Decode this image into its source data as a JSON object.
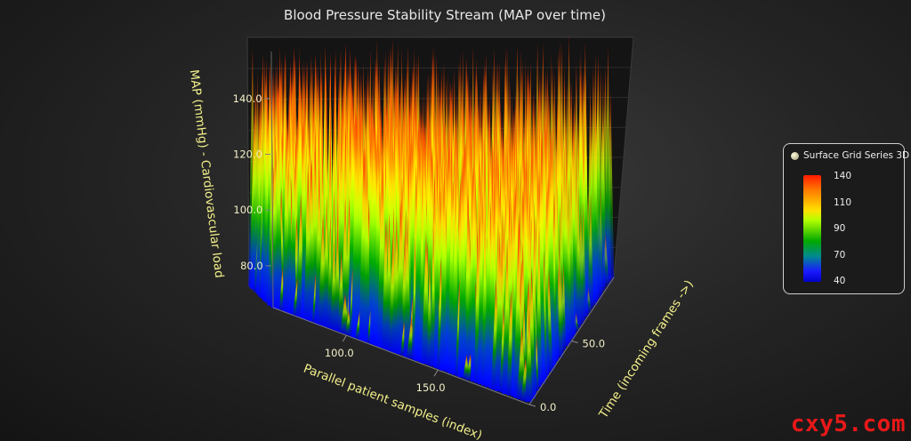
{
  "chart_data": {
    "type": "surface3d",
    "title": "Blood Pressure Stability Stream (MAP over time)",
    "zlabel": "MAP (mmHg) - Cardiovascular load",
    "xlabel": "Parallel patient samples (index)",
    "ylabel": "Time (incoming frames ->)",
    "z_ticks": [
      80.0,
      100.0,
      120.0,
      140.0
    ],
    "z_tick_labels": [
      "80.0",
      "100.0",
      "120.0",
      "140.0"
    ],
    "x_ticks": [
      100.0,
      150.0
    ],
    "x_tick_labels": [
      "100.0",
      "150.0"
    ],
    "y_ticks": [
      0.0,
      50.0
    ],
    "y_tick_labels": [
      "0.0",
      "50.0"
    ],
    "zlim": [
      65,
      155
    ],
    "xlim": [
      60,
      200
    ],
    "ylim": [
      0,
      100
    ],
    "legend": {
      "title": "Surface Grid Series 3D",
      "placement": "right",
      "ticks": [
        "140",
        "110",
        "90",
        "70",
        "40"
      ]
    },
    "series": [
      {
        "name": "Surface Grid Series 3D",
        "description_of_values": "Noisy MAP samples per patient per frame, mostly 95–150 mmHg with dips to ~70",
        "value_range": [
          68,
          152
        ]
      }
    ]
  },
  "colors": {
    "low": "#0000ff",
    "mid_low": "#00a000",
    "mid": "#c8ff00",
    "mid_high": "#ffd000",
    "high": "#ff1a00"
  },
  "watermark": "cxy5.com"
}
